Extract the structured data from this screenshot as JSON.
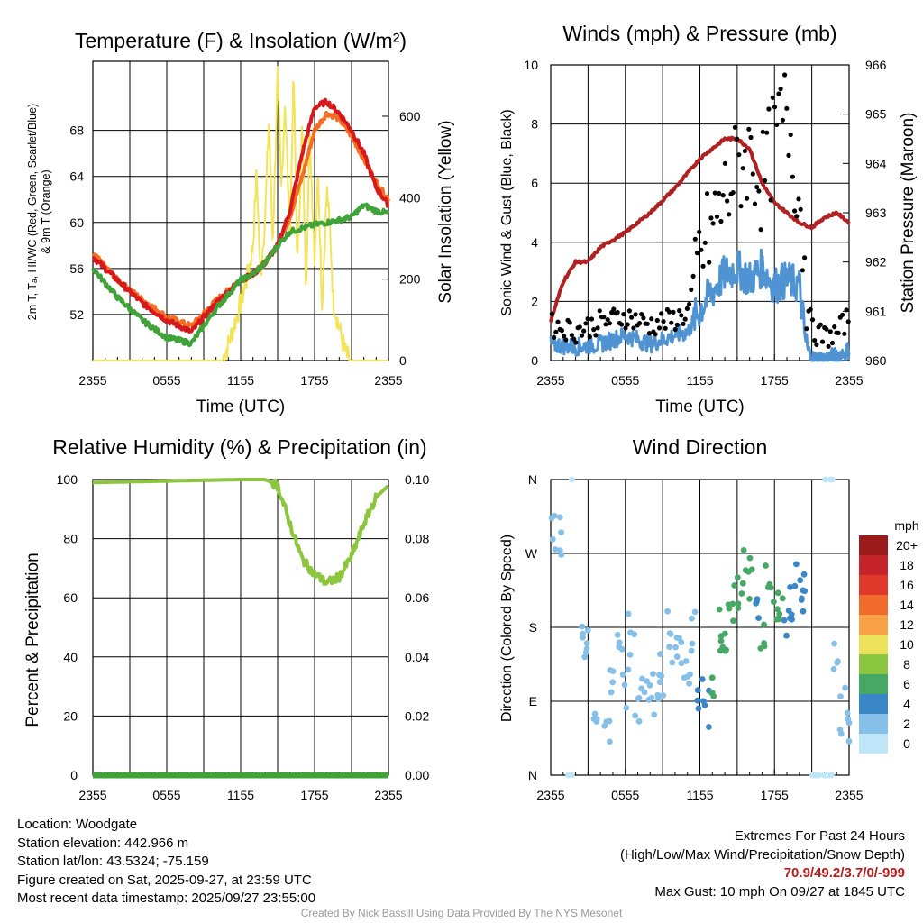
{
  "chart_data": [
    {
      "type": "line",
      "title": "Temperature (F) & Insolation (W/m²)",
      "xlabel": "Time (UTC)",
      "ylabel": "2m T, Tₐ, HI/WC (Red, Green, Scarlet/Blue) & 9m T (Orange)",
      "y2label": "Solar Insolation (Yellow)",
      "xticks": [
        "2355",
        "0555",
        "1155",
        "1755",
        "2355"
      ],
      "ylim": [
        48,
        74
      ],
      "yticks": [
        52,
        56,
        60,
        64,
        68
      ],
      "y2lim": [
        0,
        735
      ],
      "y2ticks": [
        0,
        200,
        400,
        600
      ],
      "series": [
        {
          "name": "2m T",
          "color": "#d7191c",
          "x": [
            0,
            2,
            4,
            6,
            8,
            10,
            12,
            13,
            14,
            15,
            16,
            17,
            18,
            19,
            20,
            21,
            22,
            23,
            24
          ],
          "values": [
            57,
            55,
            53,
            51.5,
            50.5,
            53,
            55,
            55.5,
            56.5,
            58,
            61,
            66,
            70,
            70.5,
            69.5,
            68,
            66,
            63,
            61.5
          ]
        },
        {
          "name": "9m T",
          "color": "#f46d22",
          "x": [
            0,
            2,
            4,
            6,
            8,
            10,
            12,
            13,
            14,
            15,
            16,
            17,
            18,
            19,
            20,
            21,
            22,
            23,
            24
          ],
          "values": [
            57.3,
            55,
            53.3,
            51.8,
            51,
            53.2,
            55,
            55.5,
            56.5,
            58,
            60.5,
            64,
            68,
            69.5,
            69,
            67.5,
            65.5,
            63.5,
            62
          ]
        },
        {
          "name": "Td",
          "color": "#3fa33a",
          "x": [
            0,
            2,
            4,
            6,
            8,
            10,
            12,
            13,
            14,
            15,
            16,
            17,
            18,
            19,
            20,
            21,
            22,
            23,
            24
          ],
          "values": [
            56,
            53.5,
            51.5,
            50,
            49.5,
            52.5,
            55,
            55.5,
            56.5,
            58,
            59.2,
            59.5,
            59.8,
            60,
            60.2,
            60.5,
            61.5,
            61,
            60.8
          ]
        },
        {
          "name": "Insolation",
          "color": "#f2e45a",
          "axis": "y2",
          "x": [
            0,
            10.5,
            11,
            11.5,
            12,
            12.5,
            13,
            13.3,
            13.6,
            14,
            14.3,
            14.6,
            15,
            15.3,
            15.6,
            16,
            16.3,
            16.6,
            17,
            17.3,
            17.6,
            18,
            18.3,
            18.6,
            19,
            19.3,
            19.5,
            20,
            20.5,
            20.8,
            24
          ],
          "values": [
            0,
            0,
            40,
            90,
            140,
            200,
            280,
            470,
            200,
            360,
            600,
            280,
            700,
            420,
            640,
            300,
            710,
            230,
            580,
            180,
            560,
            260,
            470,
            130,
            420,
            300,
            150,
            80,
            20,
            0,
            0
          ]
        }
      ]
    },
    {
      "type": "line",
      "title": "Winds (mph) & Pressure (mb)",
      "xlabel": "Time (UTC)",
      "ylabel": "Sonic Wind & Gust (Blue, Black)",
      "y2label": "Station Pressure (Maroon)",
      "xticks": [
        "2355",
        "0555",
        "1155",
        "1755",
        "2355"
      ],
      "ylim": [
        0,
        10
      ],
      "yticks": [
        0,
        2,
        4,
        6,
        8,
        10
      ],
      "y2lim": [
        960,
        966
      ],
      "y2ticks": [
        960,
        961,
        962,
        963,
        964,
        965,
        966
      ],
      "series": [
        {
          "name": "Sonic Wind",
          "color": "#4f93d2",
          "x": [
            0,
            2,
            4,
            6,
            8,
            10,
            11,
            12,
            13,
            14,
            15,
            16,
            17,
            18,
            19,
            20,
            20.5,
            21,
            22,
            23,
            24
          ],
          "values": [
            0.5,
            0.4,
            0.5,
            0.8,
            0.5,
            0.8,
            0.9,
            1.6,
            2.2,
            2.8,
            3.0,
            2.6,
            3.0,
            2.4,
            2.6,
            2.4,
            0.5,
            0.0,
            0.0,
            0.1,
            0.3
          ]
        },
        {
          "name": "Gust",
          "color": "#000000",
          "x": [
            0,
            2,
            4,
            6,
            8,
            10,
            11,
            12,
            13,
            14,
            15,
            16,
            17,
            18,
            19,
            20,
            20.5,
            21,
            22,
            23,
            24
          ],
          "values": [
            1.2,
            1.0,
            1.3,
            1.5,
            1.2,
            1.4,
            1.6,
            3.5,
            4.5,
            5.5,
            6.5,
            7.0,
            6.0,
            7.5,
            8.5,
            5.5,
            3.0,
            1.0,
            0.8,
            0.9,
            1.5
          ]
        },
        {
          "name": "Station Pressure",
          "color": "#b02222",
          "axis": "y2",
          "x": [
            0,
            1,
            2,
            3,
            4,
            6,
            8,
            10,
            12,
            14,
            15,
            16,
            17,
            18,
            19,
            20,
            21,
            22,
            23,
            24
          ],
          "values": [
            960.8,
            961.6,
            962.0,
            962.0,
            962.3,
            962.6,
            963.0,
            963.5,
            964.1,
            964.5,
            964.5,
            964.3,
            963.6,
            963.2,
            963.0,
            962.8,
            962.7,
            962.9,
            963.0,
            962.8
          ]
        }
      ]
    },
    {
      "type": "line",
      "title": "Relative Humidity (%) & Precipitation (in)",
      "ylabel": "Percent & Precipitation",
      "xticks": [
        "2355",
        "0555",
        "1155",
        "1755",
        "2355"
      ],
      "ylim": [
        0,
        100
      ],
      "yticks": [
        0,
        20,
        40,
        60,
        80,
        100
      ],
      "y2lim": [
        0,
        0.1
      ],
      "y2ticks": [
        "0.00",
        "0.02",
        "0.04",
        "0.06",
        "0.08",
        "0.10"
      ],
      "series": [
        {
          "name": "Relative Humidity",
          "color": "#8cc63f",
          "x": [
            0,
            12,
            13,
            14,
            15,
            16,
            17,
            18,
            19,
            20,
            21,
            22,
            23,
            24
          ],
          "values": [
            99,
            100,
            100,
            100,
            98,
            85,
            73,
            68,
            65,
            67,
            74,
            85,
            94,
            98
          ]
        },
        {
          "name": "Precipitation",
          "color": "#3fa33a",
          "axis": "y2",
          "x": [
            0,
            24
          ],
          "values": [
            0,
            0
          ]
        }
      ]
    },
    {
      "type": "scatter",
      "title": "Wind Direction",
      "ylabel": "Direction (Colored By Speed)",
      "xticks": [
        "2355",
        "0555",
        "1155",
        "1755",
        "2355"
      ],
      "yticks": [
        "N",
        "E",
        "S",
        "W",
        "N"
      ],
      "legend_title": "mph",
      "legend_labels": [
        "20+",
        "18",
        "16",
        "14",
        "12",
        "10",
        "8",
        "6",
        "4",
        "2",
        "0"
      ],
      "legend_colors": [
        "#9b1a1a",
        "#c6242b",
        "#e0392b",
        "#f26b2a",
        "#f8a146",
        "#ebe15b",
        "#8cc63f",
        "#47a866",
        "#3a87c7",
        "#86bfe8",
        "#bfe5f8"
      ],
      "x": [
        0.2,
        0.8,
        1.5,
        2.5,
        3.0,
        3.5,
        4.5,
        5.0,
        5.5,
        6.0,
        6.5,
        7.0,
        7.5,
        8.0,
        8.5,
        9.0,
        9.5,
        10.0,
        10.5,
        11.0,
        11.5,
        12.0,
        12.5,
        13.0,
        13.5,
        14.0,
        14.5,
        15.0,
        15.5,
        16.0,
        16.5,
        17.0,
        17.5,
        18.0,
        18.5,
        19.0,
        19.5,
        20.0,
        20.5,
        21.0,
        21.5,
        22.0,
        22.5,
        23.0,
        23.5,
        24.0
      ],
      "values": [
        300,
        290,
        0,
        170,
        160,
        90,
        60,
        100,
        150,
        110,
        170,
        80,
        130,
        100,
        95,
        120,
        175,
        150,
        140,
        130,
        170,
        110,
        80,
        100,
        175,
        150,
        200,
        230,
        250,
        240,
        200,
        180,
        250,
        210,
        195,
        190,
        210,
        240,
        225,
        0,
        0,
        0,
        0,
        150,
        80,
        60
      ],
      "speeds": [
        1,
        1,
        0,
        1,
        1,
        1,
        1,
        1,
        1,
        1,
        1,
        1,
        1,
        1,
        1,
        1,
        1,
        1,
        1,
        1,
        1,
        2,
        2,
        3,
        3,
        3,
        3,
        3,
        3,
        3,
        2,
        3,
        3,
        3,
        3,
        2,
        2,
        2,
        2,
        0,
        0,
        0,
        0,
        1,
        1,
        1
      ]
    }
  ],
  "info": {
    "location": "Location: Woodgate",
    "elevation": "Station elevation: 442.966 m",
    "latlon": "Station lat/lon: 43.5324; -75.159",
    "created": "Figure created on Sat, 2025-09-27, at 23:59 UTC",
    "recent": "Most recent data timestamp: 2025/09/27 23:55:00"
  },
  "extremes": {
    "heading": "Extremes For Past 24 Hours",
    "subheading": "(High/Low/Max Wind/Precipitation/Snow Depth)",
    "values": "70.9/49.2/3.7/0/-999",
    "max_gust": "Max Gust: 10 mph On 09/27 at 1845 UTC"
  },
  "credit": "Created By Nick Bassill Using Data Provided By The NYS Mesonet"
}
